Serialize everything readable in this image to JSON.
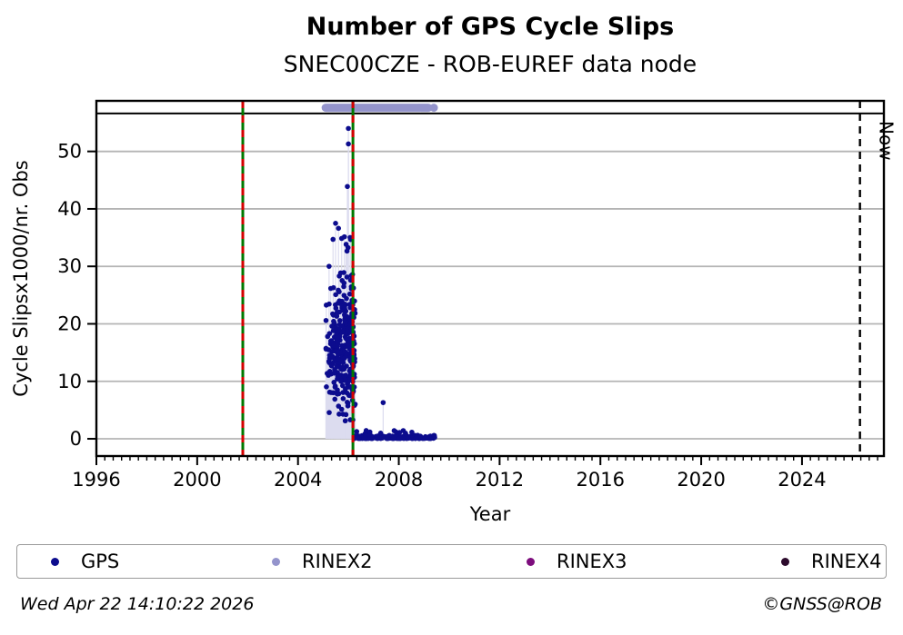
{
  "footer": {
    "timestamp": "Wed Apr 22 14:10:22 2026",
    "credit": "©GNSS@ROB"
  },
  "legend": {
    "items": [
      {
        "label": "GPS",
        "color": "#0c0c8e"
      },
      {
        "label": "RINEX2",
        "color": "#9494cc"
      },
      {
        "label": "RINEX3",
        "color": "#7d0d7d"
      },
      {
        "label": "RINEX4",
        "color": "#2d0b2d"
      }
    ]
  },
  "chart_data": {
    "type": "scatter",
    "title": "Number of GPS Cycle Slips",
    "subtitle": "SNEC00CZE - ROB-EUREF data node",
    "xlabel": "Year",
    "ylabel": "Cycle Slipsx1000/nr. Obs",
    "xlim": [
      1996,
      2027.25
    ],
    "ylim": [
      -3,
      58.8
    ],
    "xticks": [
      1996,
      2000,
      2004,
      2008,
      2012,
      2016,
      2020,
      2024
    ],
    "yticks": [
      0,
      10,
      20,
      30,
      40,
      50
    ],
    "x_minor_per_year": 3,
    "grid": "horizontal-only",
    "legend_position": "bottom",
    "colors": {
      "gps": "#0c0c8e",
      "rinex2": "#9494cc",
      "rinex3": "#7d0d7d",
      "rinex4": "#2d0b2d",
      "event_green": "#007800",
      "event_red": "#d40000",
      "grid": "#b4b4b4",
      "stem": "#dcdcef",
      "axis": "#000000"
    },
    "event_lines": [
      {
        "x": 2001.81
      },
      {
        "x": 2006.18
      }
    ],
    "now_line": {
      "x": 2026.3,
      "label": "Now"
    },
    "top_rule_y": 56.6,
    "rinex2_track": {
      "y": 57.6,
      "segments": [
        [
          2005.1,
          2008.83
        ],
        [
          2008.88,
          2009.17
        ]
      ],
      "dots": [
        2009.39
      ]
    },
    "gps": {
      "outliers": [
        [
          2006.0,
          54.0
        ],
        [
          2006.0,
          51.3
        ],
        [
          2005.96,
          43.9
        ],
        [
          2005.39,
          34.7
        ],
        [
          2007.38,
          6.3
        ]
      ],
      "clusters": [
        {
          "n": 320,
          "x0": 2005.06,
          "x1": 2006.27,
          "xpow": 0.6,
          "dist": "bell",
          "vmin": 0,
          "vmax": 31,
          "stems": true
        },
        {
          "n": 16,
          "x0": 2005.15,
          "x1": 2006.25,
          "xpow": 0.7,
          "dist": "uniform",
          "vmin": 26,
          "vmax": 37.5,
          "stems": true
        },
        {
          "n": 170,
          "x0": 2006.19,
          "x1": 2009.45,
          "xpow": 1.0,
          "dist": "floor",
          "vmin": 0.05,
          "vmax": 0.6,
          "stems": false
        },
        {
          "n": 12,
          "x0": 2006.3,
          "x1": 2008.7,
          "xpow": 1.0,
          "dist": "uniform",
          "vmin": 0.6,
          "vmax": 1.7,
          "stems": false
        }
      ],
      "seed": 20260422
    }
  }
}
